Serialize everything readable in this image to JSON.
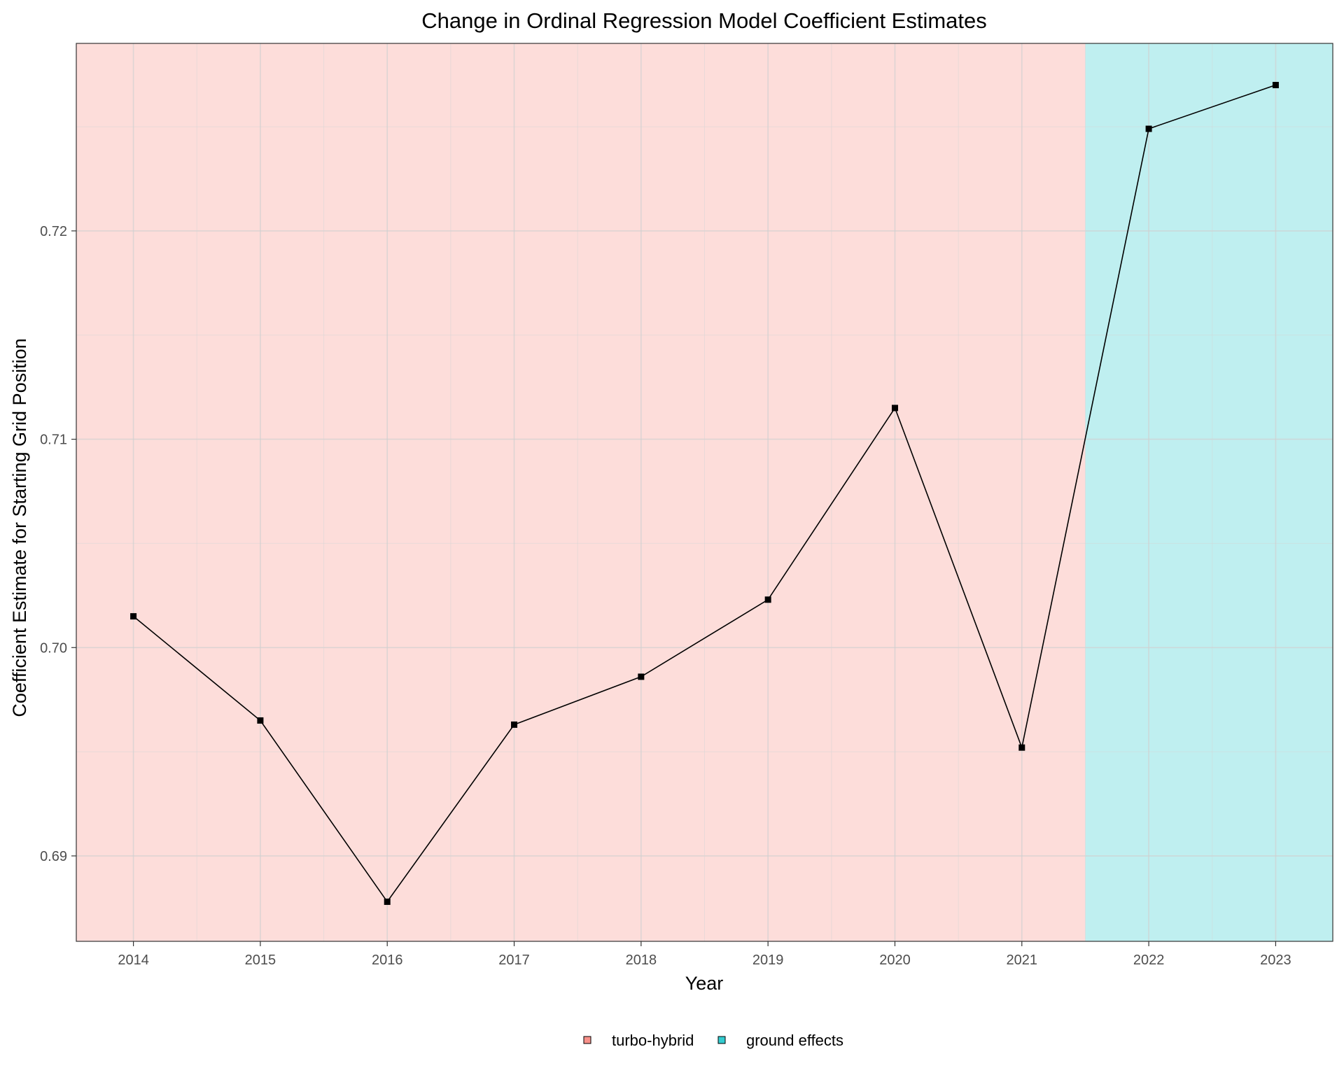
{
  "chart_data": {
    "type": "line",
    "title": "Change in Ordinal Regression Model Coefficient Estimates",
    "xlabel": "Year",
    "ylabel": "Coefficient Estimate for Starting Grid Position",
    "x": [
      2014,
      2015,
      2016,
      2017,
      2018,
      2019,
      2020,
      2021,
      2022,
      2023
    ],
    "values": [
      0.7015,
      0.6965,
      0.6878,
      0.6963,
      0.6986,
      0.7023,
      0.7115,
      0.6952,
      0.7249,
      0.727
    ],
    "xlim": [
      2013.55,
      2023.45
    ],
    "ylim": [
      0.6859,
      0.729
    ],
    "yticks": [
      0.69,
      0.7,
      0.71,
      0.72
    ],
    "ytick_labels": [
      "0.69",
      "0.70",
      "0.71",
      "0.72"
    ],
    "xticks": [
      2014,
      2015,
      2016,
      2017,
      2018,
      2019,
      2020,
      2021,
      2022,
      2023
    ],
    "xtick_labels": [
      "2014",
      "2015",
      "2016",
      "2017",
      "2018",
      "2019",
      "2020",
      "2021",
      "2022",
      "2023"
    ],
    "grid": true,
    "legend_position": "bottom",
    "regions": [
      {
        "name": "turbo-hybrid",
        "from": 2013.55,
        "to": 2021.5,
        "color": "#f8766d"
      },
      {
        "name": "ground effects",
        "from": 2021.5,
        "to": 2023.45,
        "color": "#00bfc4"
      }
    ],
    "line_color": "#000000",
    "point_color": "#000000"
  }
}
